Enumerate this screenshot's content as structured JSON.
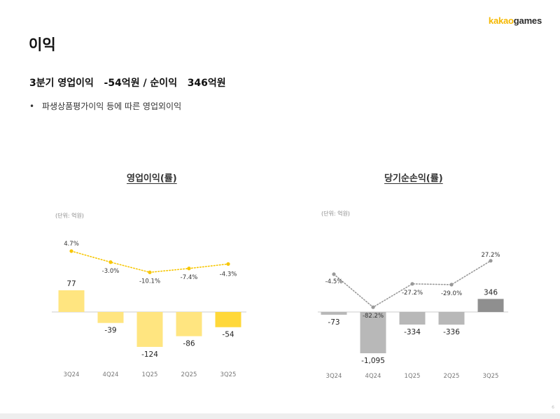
{
  "brand": {
    "part1": "kakao",
    "part2": "games"
  },
  "page_title": "이익",
  "headline": "3분기 영업이익   -54억원 / 순이익   346억원",
  "bullet": "파생상품평가이익 등에 따른 영업외이익",
  "bullet_marker": "•",
  "page_number": "6",
  "colors": {
    "op_bar": "#ffe580",
    "op_bar_highlight": "#ffd83a",
    "op_line": "#f7c600",
    "net_bar": "#b8b8b8",
    "net_bar_highlight": "#8f8f8f",
    "net_line": "#999999",
    "axis": "#cccccc"
  },
  "chart_data": [
    {
      "type": "bar",
      "title": "영업이익(률)",
      "unit_label": "(단위: 억원)",
      "categories": [
        "3Q24",
        "4Q24",
        "1Q25",
        "2Q25",
        "3Q25"
      ],
      "values": [
        77,
        -39,
        -124,
        -86,
        -54
      ],
      "value_labels": [
        "77",
        "-39",
        "-124",
        "-86",
        "-54"
      ],
      "highlight_index": 4,
      "ylim": [
        -140,
        90
      ],
      "line_series": {
        "name": "영업이익률",
        "values": [
          4.7,
          -3.0,
          -10.1,
          -7.4,
          -4.3
        ],
        "labels": [
          "4.7%",
          "-3.0%",
          "-10.1%",
          "-7.4%",
          "-4.3%"
        ],
        "ylim": [
          -30,
          10
        ]
      }
    },
    {
      "type": "bar",
      "title": "당기순손익(률)",
      "unit_label": "(단위: 억원)",
      "categories": [
        "3Q24",
        "4Q24",
        "1Q25",
        "2Q25",
        "3Q25"
      ],
      "values": [
        -73,
        -1095,
        -334,
        -336,
        346
      ],
      "value_labels": [
        "-73",
        "-1,095",
        "-334",
        "-336",
        "346"
      ],
      "highlight_index": 4,
      "ylim": [
        -1200,
        400
      ],
      "line_series": {
        "name": "당기순이익률",
        "values": [
          -4.5,
          -82.2,
          -27.2,
          -29.0,
          27.2
        ],
        "labels": [
          "-4.5%",
          "-82.2%",
          "-27.2%",
          "-29.0%",
          "27.2%"
        ],
        "ylim": [
          -100,
          40
        ]
      }
    }
  ]
}
